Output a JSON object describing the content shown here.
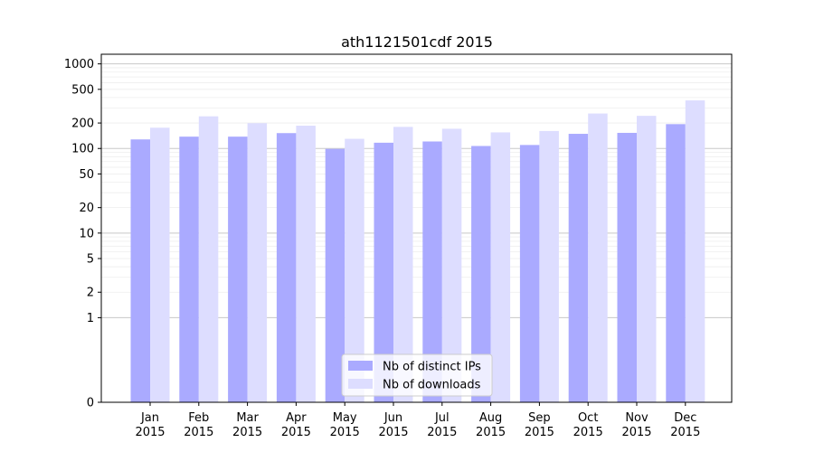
{
  "chart_data": {
    "type": "bar",
    "title": "ath1121501cdf 2015",
    "xlabel": "",
    "ylabel": "",
    "yscale": "symlog",
    "ylim": [
      0,
      1300
    ],
    "yticks": [
      0,
      1,
      2,
      5,
      10,
      20,
      50,
      100,
      200,
      500,
      1000
    ],
    "ytick_labels": [
      "0",
      "1",
      "2",
      "5",
      "10",
      "20",
      "50",
      "100",
      "200",
      "500",
      "1000"
    ],
    "grid": true,
    "legend_position": "bottom-center",
    "categories": [
      [
        "Jan",
        "2015"
      ],
      [
        "Feb",
        "2015"
      ],
      [
        "Mar",
        "2015"
      ],
      [
        "Apr",
        "2015"
      ],
      [
        "May",
        "2015"
      ],
      [
        "Jun",
        "2015"
      ],
      [
        "Jul",
        "2015"
      ],
      [
        "Aug",
        "2015"
      ],
      [
        "Sep",
        "2015"
      ],
      [
        "Oct",
        "2015"
      ],
      [
        "Nov",
        "2015"
      ],
      [
        "Dec",
        "2015"
      ]
    ],
    "series": [
      {
        "name": "Nb of distinct IPs",
        "color": "#aaaaff",
        "values": [
          128,
          138,
          138,
          152,
          99,
          117,
          121,
          107,
          110,
          149,
          153,
          194
        ]
      },
      {
        "name": "Nb of downloads",
        "color": "#ddddff",
        "values": [
          176,
          240,
          199,
          186,
          130,
          180,
          171,
          155,
          161,
          259,
          243,
          370
        ]
      }
    ]
  }
}
